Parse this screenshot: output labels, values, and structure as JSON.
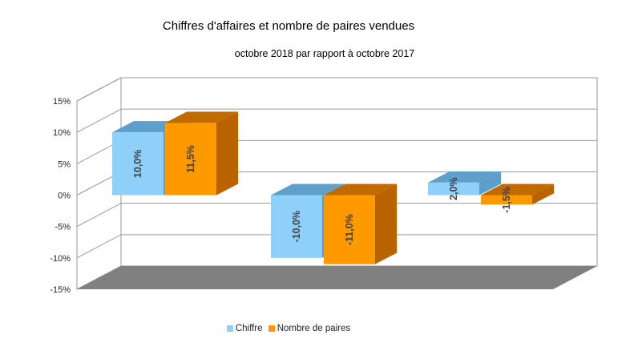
{
  "title": "Chiffres d'affaires et nombre de paires vendues",
  "subtitle": "octobre 2018 par rapport à octobre 2017",
  "chart_data": {
    "type": "bar",
    "style": "3d-clustered-column",
    "categories": [
      "",
      "",
      ""
    ],
    "series": [
      {
        "name": "Chiffre",
        "values": [
          10.0,
          -10.0,
          2.0
        ],
        "labels": [
          "10,0%",
          "-10,0%",
          "2,0%"
        ],
        "color": "#8fd0fb",
        "side_color": "#5a9ec9",
        "top_color": "#5f9fcb"
      },
      {
        "name": "Nombre de paires",
        "values": [
          11.5,
          -11.0,
          -1.5
        ],
        "labels": [
          "11,5%",
          "-11,0%",
          "-1,5%"
        ],
        "color": "#ff9900",
        "side_color": "#b86300",
        "top_color": "#c16a00"
      }
    ],
    "ylim": [
      -15,
      15
    ],
    "yticks": [
      "15%",
      "10%",
      "5%",
      "0%",
      "-5%",
      "-10%",
      "-15%"
    ],
    "ytick_values": [
      15,
      10,
      5,
      0,
      -5,
      -10,
      -15
    ],
    "grid": true,
    "legend": "bottom",
    "floor_color": "#808080"
  }
}
